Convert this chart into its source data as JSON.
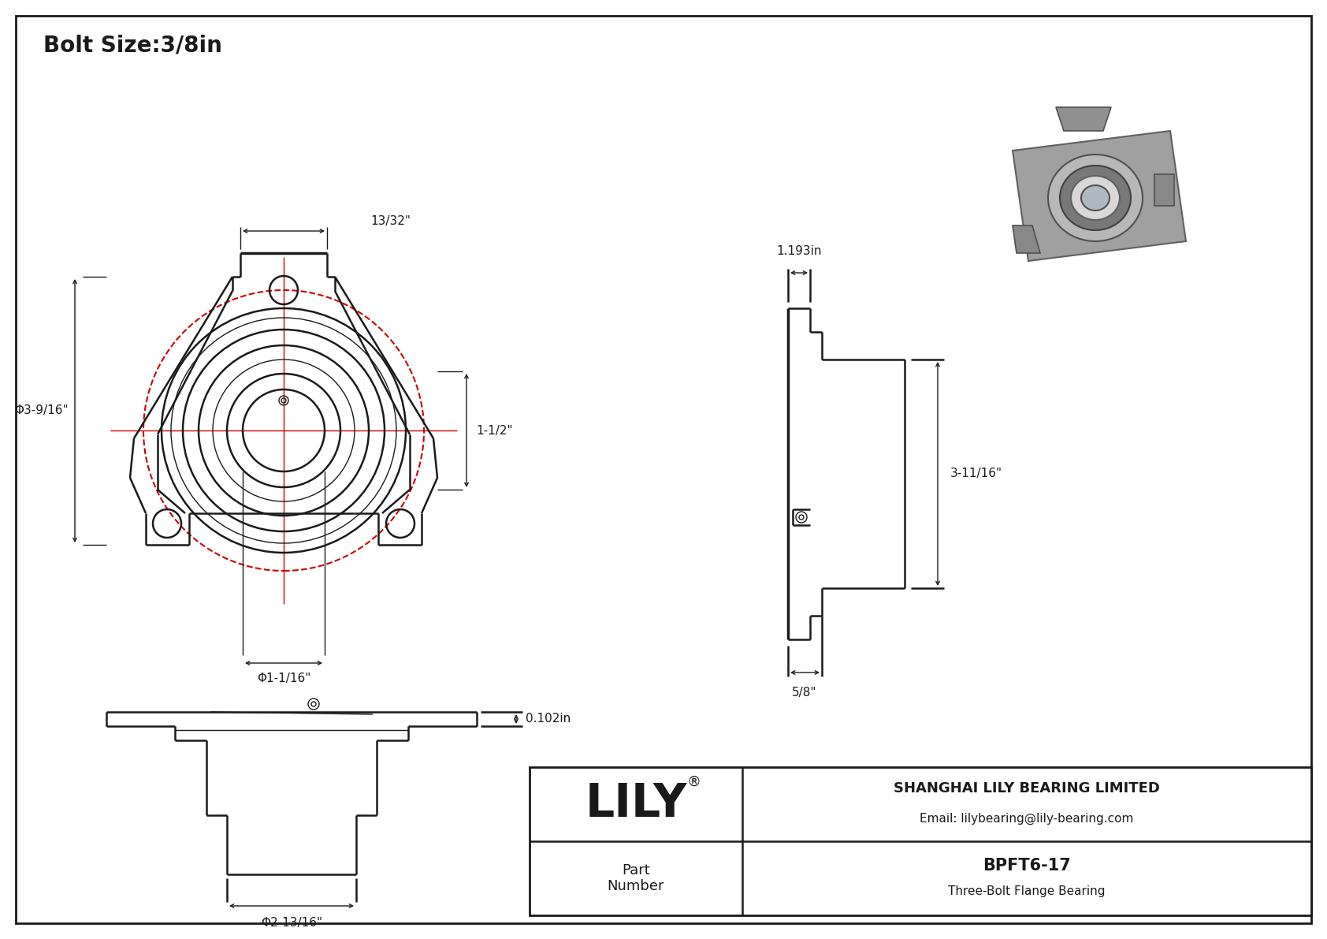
{
  "bg_color": "#ffffff",
  "line_color": "#1a1a1a",
  "red_color": "#cc0000",
  "title": "Bolt Size:3/8in",
  "company": "SHANGHAI LILY BEARING LIMITED",
  "email": "Email: lilybearing@lily-bearing.com",
  "part_label": "Part\nNumber",
  "part_number": "BPFT6-17",
  "part_desc": "Three-Bolt Flange Bearing",
  "dim_13_32": "13/32\"",
  "dim_3_9_16": "Φ3-9/16\"",
  "dim_1_1_16": "Φ1-1/16\"",
  "dim_1_1_2": "1-1/2\"",
  "dim_1_193": "1.193in",
  "dim_3_11_16": "3-11/16\"",
  "dim_5_8": "5/8\"",
  "dim_0_102": "0.102in",
  "dim_2_13_16": "Φ2-13/16\""
}
